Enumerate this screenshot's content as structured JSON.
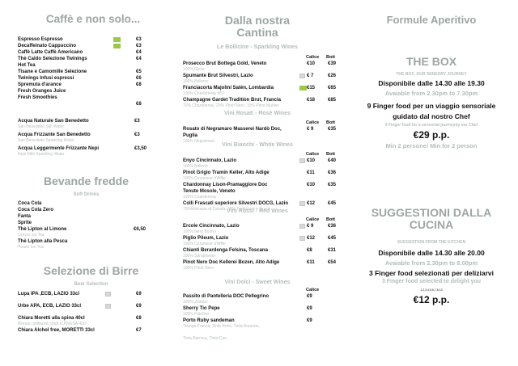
{
  "col1": {
    "title": "Caffè e non solo...",
    "coffee": [
      {
        "name": "Espresso Espresso",
        "badge": "green",
        "price": "€3"
      },
      {
        "name": "Decaffeinato Cappuccino",
        "badge": "green",
        "price": "€3"
      },
      {
        "name": "Caffè Latte Caffè Americano",
        "price": "€4"
      },
      {
        "name": "Thè Caldo Selezione Twinings",
        "price": "€4"
      },
      {
        "name": "Hot Tea"
      },
      {
        "name": "Tisane e Camomille Selezione",
        "price": "€5"
      },
      {
        "name": "Twinings Infusi espressi",
        "price": "€6"
      },
      {
        "name": "Spremuta d'arance",
        "price": "€8"
      },
      {
        "name": "Fresh Oranges Juice"
      },
      {
        "name": "Fresh Smoothies"
      },
      {
        "name": "",
        "price": "€8"
      }
    ],
    "water": [
      {
        "name": "Acqua Naturale San Benedetto",
        "price": "€3",
        "sub": "San Benedetto Still Water"
      },
      {
        "name": "Acqua Frizzante San Benedetto",
        "price": "€3",
        "sub": "San Benedetto Sparkling Water"
      },
      {
        "name": "Acqua Leggermente Frizzante Nepi",
        "price": "€3,50",
        "sub": "Nepi Mild Sparkling Water"
      }
    ],
    "soft_title": "Bevande fredde",
    "soft_subtitle": "Soft Drinks",
    "soft": [
      {
        "name": "Coca Cola"
      },
      {
        "name": "Coca Cola Zero"
      },
      {
        "name": "Fanta"
      },
      {
        "name": "Sprite"
      },
      {
        "name": "Thè Lipton al Limone",
        "price": "€6,50",
        "sub": "Lemon Ice Tea"
      },
      {
        "name": "Thè Lipton alla Pesca",
        "sub": "Peach Ice Tea"
      }
    ],
    "beer_title": "Selezione di Birre",
    "beer_subtitle": "Beer Selection",
    "beer": [
      {
        "name": "Lupa IPA ,ECB, LAZIO 33cl",
        "badge": "km",
        "price": "€9"
      },
      {
        "name": "Urbe APA, ECB, LAZIO 33cl",
        "badge": "km",
        "price": "€9"
      },
      {
        "name": "Chiara Moretti alla spina 40cl",
        "price": "€8",
        "sub": "Blonde unfiltered, draft ICHNUSA 40cl"
      },
      {
        "name": "Chiara Alchol free, MORETTI 33cl",
        "price": "€7"
      }
    ]
  },
  "col2": {
    "title_line1": "Dalla nostra",
    "title_line2": "Cantina",
    "calice": "Calice",
    "bott": "Bott",
    "sparkling_title": "Le Bollicine - Sparkling Wines",
    "sparkling": [
      {
        "name": "Prosecco Brut Bottega Gold, Veneto",
        "sub": "100% Glera",
        "price": "€10",
        "bott": "€39"
      },
      {
        "name": "Spumante Brut Silvestri, Lazio",
        "sub": "100% Bellone",
        "badge": "km",
        "price": "€ 7",
        "bott": "€26"
      },
      {
        "name": "Franciacorta Majolini Satèn, Lombardia",
        "sub": "100% Chardonnay BIO",
        "badge": "green",
        "price": "€15",
        "bott": "€65"
      },
      {
        "name": "Champagne Gardet Tradition Brut, Francia",
        "sub": "70% Chardonnay, 20% Pinot Nero, 10% Pinot Munier",
        "price": "€18",
        "bott": "€85"
      }
    ],
    "rose_title": "Vini Rosati - Rosè Wines",
    "rose": [
      {
        "name": "Rosato di Negramaro Masserei Nardò Doc,",
        "price": "€ 9",
        "bott": "€35"
      },
      {
        "name": "Puglia",
        "sub": "100% Negramaro"
      }
    ],
    "white_title": "Vini Bianchi - White Wines",
    "white": [
      {
        "name": "Enyo Cincinnato, Lazio",
        "sub": "100% Bellone",
        "badge": "km",
        "price": "€10",
        "bott": "€40"
      },
      {
        "name": "Pinot Grigio Tramin Keller, Alto Adige",
        "sub": "100% Cesanese d'Affile",
        "price": "€11",
        "bott": "€36"
      },
      {
        "name": "Chardonnay Lison-Pramaggiore Doc",
        "price": "€10",
        "bott": "€35"
      },
      {
        "name": "Tenute Mosole, Veneto",
        "sub": "100% Chardonnay"
      },
      {
        "name": "Colli Frascati superiore Silvestri DOCG, Lazio",
        "sub": "70%Malvasia di Candia, 30% Trebbiano e Greco",
        "badge": "km",
        "price": "€12",
        "bott": "€45"
      }
    ],
    "red_title": "Vini Rossi - Red Wines",
    "red": [
      {
        "name": "Ercole Cincinnato, Lazio",
        "sub": "100% Nero Buono",
        "badge": "km",
        "price": "€ 9",
        "bott": "€36"
      },
      {
        "name": "Piglio Pileum, Lazio",
        "sub": "100% Cesanese d'Affile",
        "badge": "km",
        "price": "€12",
        "bott": "€45"
      },
      {
        "name": "Chianti Berardenga Felsina, Toscana",
        "sub": "100% Sangiovese",
        "price": "€8",
        "bott": "€31"
      },
      {
        "name": "Pinot Nero Doc Kellerei Bozen, Alto Adige",
        "sub": "100% Pinot Nero",
        "price": "€11",
        "bott": "€54"
      }
    ],
    "sweet_title": "Vini Dolci - Sweet Wines",
    "sweet": [
      {
        "name": "Passito di Pantelleria DOC Pellegrino",
        "sub": "100% Zibibbo",
        "price": "€9"
      },
      {
        "name": "Sherry Tio Pepe",
        "sub": "100% Palofino",
        "price": "€9"
      },
      {
        "name": "Porto Ruby sandeman",
        "sub": "Touriga Franca, Tinta Roriz, Tinta Amarela,",
        "price": "€9"
      },
      {
        "name": "",
        "sub": "Tinta Barroca, Tinto Cao"
      }
    ]
  },
  "col3": {
    "title": "Formule Aperitivo",
    "box_title": "THE BOX",
    "box_subtitle": "THE BOX, OUR SENSORY JOURNEY",
    "box_hours": "Disponibile dalle 14.30 alle 19.30",
    "box_hours_en": "Avaiable from 2.30pm to 7.30pm",
    "box_desc1": "9 Finger food per un viaggio sensoriale",
    "box_desc2": "guidato dal nostro Chef",
    "box_desc_en": "9 Finger food for a sensorial journeyby our Chef",
    "box_price": "€29 p.p.",
    "box_min": "Min 2 persone/ Min for 2 person",
    "kitchen_title1": "SUGGESTIONI DALLA",
    "kitchen_title2": "CUCINA",
    "kitchen_subtitle": "SUGGESTION FROM THE KITCHEN",
    "kitchen_hours": "Disponibile dalle 14.30 alle 20.00",
    "kitchen_hours_en": "Avaiable from 2.30pm to 8.00pm",
    "kitchen_desc": "3 Finger food selezionati per deliziarvi",
    "kitchen_desc_en": "3 Finger food selected to delight you",
    "kitchen_allergens": "1,2,3,4,5,6,7,8,13",
    "kitchen_price": "€12  p.p."
  },
  "colors": {
    "title": "#9ca6a3",
    "sub": "#b5bfbb",
    "green_badge": "#9cc84a"
  }
}
